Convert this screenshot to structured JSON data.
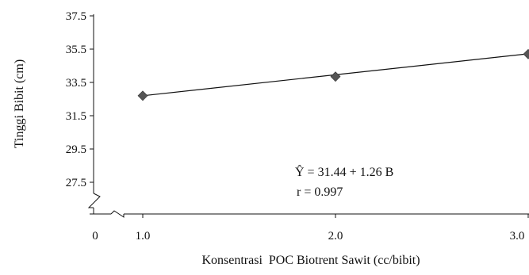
{
  "chart_data": {
    "type": "scatter",
    "xlabel": "Konsentrasi  POC Biotrent Sawit (cc/bibit)",
    "ylabel": "Tinggi Bibit (cm)",
    "x_ticks": [
      "0",
      "1.0",
      "2.0",
      "3.0"
    ],
    "y_ticks": [
      "37.5",
      "35.5",
      "33.5",
      "31.5",
      "29.5",
      "27.5"
    ],
    "y_tick_values": [
      37.5,
      35.5,
      33.5,
      31.5,
      29.5,
      27.5
    ],
    "x_tick_values": [
      1.0,
      2.0,
      3.0
    ],
    "ylim": [
      27.5,
      37.5
    ],
    "xlim": [
      1.0,
      3.0
    ],
    "axis_break": true,
    "series": [
      {
        "x": [
          1.0,
          2.0,
          3.0
        ],
        "y": [
          32.7,
          33.85,
          35.2
        ],
        "marker": "diamond"
      }
    ],
    "regression": {
      "intercept": 31.44,
      "slope": 1.26,
      "equation": "Ŷ = 31.44 + 1.26 B",
      "r_text": "r = 0.997"
    },
    "grid": false,
    "colors": {
      "axis": "#111111",
      "line": "#111111",
      "marker": "#555555"
    }
  }
}
